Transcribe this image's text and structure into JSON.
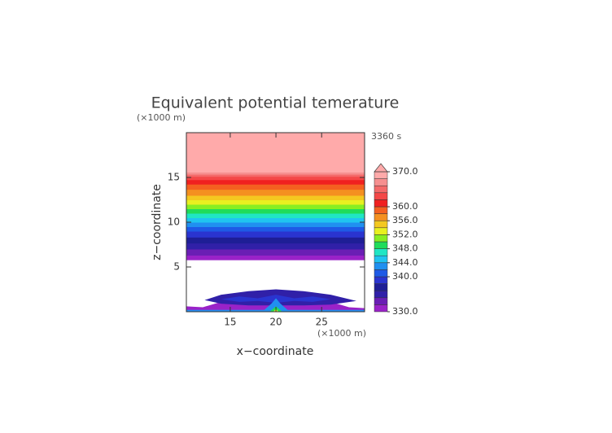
{
  "chart_data": {
    "type": "contour",
    "title": "Equivalent potential temerature",
    "time_label": "3360 s",
    "x_label": "x−coordinate",
    "y_label": "z−coordinate",
    "x_unit": "(×1000 m)",
    "y_unit": "(×1000 m)",
    "xlim": [
      10.2,
      29.7
    ],
    "ylim": [
      0,
      20
    ],
    "xticks": [
      15,
      20,
      25
    ],
    "yticks": [
      5,
      10,
      15
    ],
    "colorbar": {
      "levels": [
        330,
        332,
        334,
        336,
        338,
        340,
        342,
        344,
        346,
        348,
        350,
        352,
        354,
        356,
        358,
        360,
        362,
        364,
        366,
        368,
        370
      ],
      "colors": [
        "#9a22c8",
        "#6a1eb4",
        "#3020a8",
        "#1e1e96",
        "#2a34d0",
        "#1e5ae6",
        "#2090f0",
        "#20c4f0",
        "#20e6c4",
        "#20dc5a",
        "#88ee22",
        "#e8f020",
        "#f4c820",
        "#f49020",
        "#f46020",
        "#f02020",
        "#f44848",
        "#f46a6a",
        "#f69090",
        "#ffaaaa",
        "#ffaaaa"
      ],
      "ticks": [
        {
          "value": 330,
          "label": "330.0"
        },
        {
          "value": 340,
          "label": "340.0"
        },
        {
          "value": 344,
          "label": "344.0"
        },
        {
          "value": 348,
          "label": "348.0"
        },
        {
          "value": 352,
          "label": "352.0"
        },
        {
          "value": 356,
          "label": "356.0"
        },
        {
          "value": 360,
          "label": "360.0"
        },
        {
          "value": 370,
          "label": "370.0"
        }
      ]
    },
    "profile": {
      "z": [
        5.8,
        7,
        8,
        9,
        10,
        11,
        12,
        13,
        14,
        15,
        15.6,
        20
      ],
      "theta_e": [
        330.5,
        334,
        337,
        340,
        344,
        348,
        352,
        356,
        359,
        363,
        368,
        369.5
      ]
    },
    "regions": [
      {
        "level": 330,
        "x": [
          10.2,
          12,
          14,
          16,
          18,
          20,
          22,
          24,
          26,
          28,
          29.7,
          29.7,
          10.2
        ],
        "z": [
          0.6,
          0.5,
          1.1,
          1.0,
          0.8,
          1.2,
          0.8,
          1.0,
          1.1,
          0.5,
          0.4,
          0,
          0
        ]
      },
      {
        "level": 334,
        "x": [
          12.2,
          14,
          17,
          20,
          23,
          26,
          28.8,
          26,
          23,
          20,
          17,
          14
        ],
        "z": [
          1.3,
          1.9,
          2.3,
          2.5,
          2.3,
          1.9,
          1.2,
          0.8,
          0.7,
          0.7,
          0.7,
          0.9
        ]
      },
      {
        "level": 338,
        "x": [
          14,
          16,
          18,
          20,
          22,
          24,
          26,
          24,
          22,
          20,
          18,
          16
        ],
        "z": [
          1.4,
          1.7,
          1.5,
          1.9,
          1.5,
          1.7,
          1.4,
          1.1,
          1.2,
          1.0,
          1.2,
          1.1
        ]
      },
      {
        "level": 342,
        "x": [
          18.5,
          19.5,
          20,
          20.5,
          21.5,
          21,
          19
        ],
        "z": [
          0,
          0.9,
          1.5,
          0.9,
          0,
          0,
          0
        ]
      },
      {
        "level": 342,
        "x": [
          10.2,
          29.7,
          29.7,
          10.2
        ],
        "z": [
          0.2,
          0.2,
          0,
          0
        ]
      },
      {
        "level": 348,
        "x": [
          19.3,
          20,
          20.7,
          20.3,
          19.7
        ],
        "z": [
          0,
          0.6,
          0,
          0,
          0
        ]
      },
      {
        "level": 352,
        "x": [
          19.7,
          20,
          20.3
        ],
        "z": [
          0,
          0.3,
          0
        ]
      }
    ]
  }
}
